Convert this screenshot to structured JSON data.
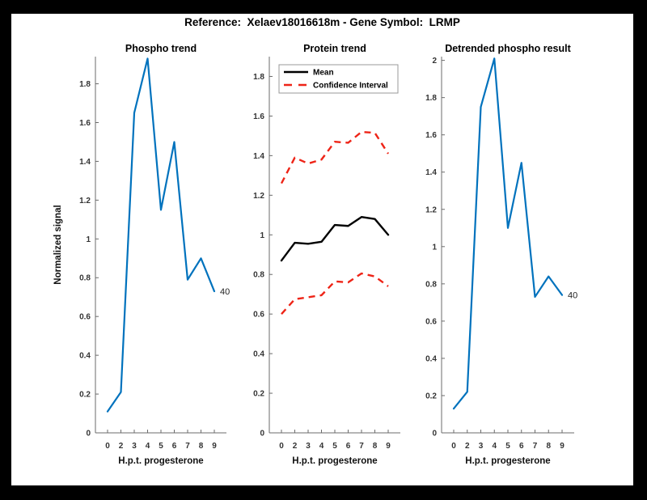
{
  "figure": {
    "title": "Reference:  Xelaev18016618m - Gene Symbol:  LRMP"
  },
  "colors": {
    "blue": "#0072BD",
    "red": "#EE2417",
    "black": "#000000",
    "axis_line": "#6b6b6b",
    "legend_border": "#999999",
    "figure_bg": "#ffffff",
    "page_bg": "#000000"
  },
  "chart_data": [
    {
      "id": "phospho-trend",
      "type": "line",
      "title": "Phospho trend",
      "xlabel": "H.p.t. progesterone",
      "ylabel": "Normalized signal",
      "x_tick_labels": [
        "0",
        "2",
        "3",
        "4",
        "5",
        "6",
        "7",
        "8",
        "9"
      ],
      "y_tick_values": [
        0,
        0.2,
        0.4,
        0.6,
        0.8,
        1,
        1.2,
        1.4,
        1.6,
        1.8
      ],
      "y_tick_labels": [
        "0",
        "0.2",
        "0.4",
        "0.6",
        "0.8",
        "1",
        "1.2",
        "1.4",
        "1.6",
        "1.8"
      ],
      "ylim": [
        0,
        1.94
      ],
      "grid": false,
      "legend": null,
      "series": [
        {
          "name": "phospho-signal",
          "color_key": "blue",
          "style": "solid",
          "width": 2.2,
          "values": [
            0.11,
            0.21,
            1.65,
            1.93,
            1.15,
            1.5,
            0.79,
            0.9,
            0.73
          ]
        }
      ],
      "end_annotation": "40"
    },
    {
      "id": "protein-trend",
      "type": "line",
      "title": "Protein trend",
      "xlabel": "H.p.t. progesterone",
      "ylabel": null,
      "x_tick_labels": [
        "0",
        "2",
        "3",
        "4",
        "5",
        "6",
        "7",
        "8",
        "9"
      ],
      "y_tick_values": [
        0,
        0.2,
        0.4,
        0.6,
        0.8,
        1,
        1.2,
        1.4,
        1.6,
        1.8
      ],
      "y_tick_labels": [
        "0",
        "0.2",
        "0.4",
        "0.6",
        "0.8",
        "1",
        "1.2",
        "1.4",
        "1.6",
        "1.8"
      ],
      "ylim": [
        0,
        1.9
      ],
      "grid": false,
      "legend": {
        "position": "top-left",
        "entries": [
          {
            "label": "Mean",
            "color_key": "black",
            "style": "solid"
          },
          {
            "label": "Confidence Interval",
            "color_key": "red",
            "style": "dashed"
          }
        ]
      },
      "series": [
        {
          "name": "mean",
          "color_key": "black",
          "style": "solid",
          "width": 2.4,
          "values": [
            0.87,
            0.96,
            0.955,
            0.965,
            1.05,
            1.045,
            1.09,
            1.08,
            1.0
          ]
        },
        {
          "name": "confidence-upper",
          "color_key": "red",
          "style": "dashed",
          "width": 2.4,
          "values": [
            1.26,
            1.39,
            1.36,
            1.38,
            1.47,
            1.465,
            1.52,
            1.515,
            1.41
          ]
        },
        {
          "name": "confidence-lower",
          "color_key": "red",
          "style": "dashed",
          "width": 2.4,
          "values": [
            0.6,
            0.675,
            0.685,
            0.695,
            0.765,
            0.76,
            0.805,
            0.79,
            0.74
          ]
        }
      ],
      "end_annotation": null
    },
    {
      "id": "detrended-phospho",
      "type": "line",
      "title": "Detrended phospho result",
      "xlabel": "H.p.t. progesterone",
      "ylabel": null,
      "x_tick_labels": [
        "0",
        "2",
        "3",
        "4",
        "5",
        "6",
        "7",
        "8",
        "9"
      ],
      "y_tick_values": [
        0,
        0.2,
        0.4,
        0.6,
        0.8,
        1,
        1.2,
        1.4,
        1.6,
        1.8,
        2
      ],
      "y_tick_labels": [
        "0",
        "0.2",
        "0.4",
        "0.6",
        "0.8",
        "1",
        "1.2",
        "1.4",
        "1.6",
        "1.8",
        "2"
      ],
      "ylim": [
        0,
        2.02
      ],
      "grid": false,
      "legend": null,
      "series": [
        {
          "name": "detrended-phospho-signal",
          "color_key": "blue",
          "style": "solid",
          "width": 2.2,
          "values": [
            0.13,
            0.22,
            1.75,
            2.01,
            1.1,
            1.45,
            0.73,
            0.84,
            0.74
          ]
        }
      ],
      "end_annotation": "40"
    }
  ]
}
